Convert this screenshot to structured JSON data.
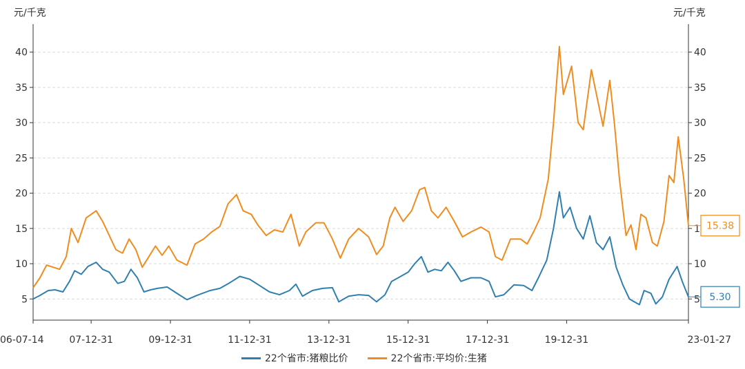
{
  "chart_data": {
    "type": "line",
    "y_unit_left": "元/千克",
    "y_unit_right": "元/千克",
    "ylim": [
      2,
      43
    ],
    "yticks": [
      5,
      10,
      15,
      20,
      25,
      30,
      35,
      40
    ],
    "x_tick_labels": [
      "06-07-14",
      "07-12-31",
      "09-12-31",
      "11-12-31",
      "13-12-31",
      "15-12-31",
      "17-12-31",
      "19-12-31",
      "23-01-27"
    ],
    "x_tick_dates": [
      "2006-07-14",
      "2007-12-31",
      "2009-12-31",
      "2011-12-31",
      "2013-12-31",
      "2015-12-31",
      "2017-12-31",
      "2019-12-31",
      "2023-01-27"
    ],
    "x_range": [
      "2006-07-14",
      "2023-01-27"
    ],
    "grid": "horizontal-dashed",
    "legend_position": "bottom",
    "series": [
      {
        "name": "22个省市:猪粮比价",
        "color": "#2E7FAF",
        "axis": "left",
        "last_value": "5.30",
        "points": [
          [
            "2006-07-14",
            5.0
          ],
          [
            "2006-09-15",
            5.5
          ],
          [
            "2006-12-01",
            6.2
          ],
          [
            "2007-02-01",
            6.3
          ],
          [
            "2007-04-15",
            6.0
          ],
          [
            "2007-06-15",
            7.5
          ],
          [
            "2007-08-01",
            9.0
          ],
          [
            "2007-10-01",
            8.5
          ],
          [
            "2007-12-01",
            9.6
          ],
          [
            "2008-02-15",
            10.2
          ],
          [
            "2008-04-15",
            9.2
          ],
          [
            "2008-06-15",
            8.8
          ],
          [
            "2008-09-01",
            7.2
          ],
          [
            "2008-11-01",
            7.5
          ],
          [
            "2009-01-01",
            9.2
          ],
          [
            "2009-03-01",
            8.0
          ],
          [
            "2009-05-01",
            6.0
          ],
          [
            "2009-07-01",
            6.3
          ],
          [
            "2009-09-01",
            6.5
          ],
          [
            "2009-12-01",
            6.7
          ],
          [
            "2010-03-01",
            5.8
          ],
          [
            "2010-06-01",
            4.9
          ],
          [
            "2010-09-01",
            5.5
          ],
          [
            "2011-01-01",
            6.2
          ],
          [
            "2011-04-01",
            6.5
          ],
          [
            "2011-07-01",
            7.3
          ],
          [
            "2011-10-01",
            8.2
          ],
          [
            "2012-01-01",
            7.8
          ],
          [
            "2012-04-01",
            6.9
          ],
          [
            "2012-07-01",
            6.0
          ],
          [
            "2012-10-01",
            5.6
          ],
          [
            "2013-01-01",
            6.2
          ],
          [
            "2013-03-01",
            7.1
          ],
          [
            "2013-05-01",
            5.4
          ],
          [
            "2013-08-01",
            6.2
          ],
          [
            "2013-11-01",
            6.5
          ],
          [
            "2014-02-01",
            6.6
          ],
          [
            "2014-04-01",
            4.6
          ],
          [
            "2014-07-01",
            5.4
          ],
          [
            "2014-10-01",
            5.6
          ],
          [
            "2015-01-01",
            5.5
          ],
          [
            "2015-03-15",
            4.6
          ],
          [
            "2015-06-01",
            5.6
          ],
          [
            "2015-08-01",
            7.5
          ],
          [
            "2015-10-01",
            8.0
          ],
          [
            "2016-01-01",
            8.8
          ],
          [
            "2016-03-01",
            10.0
          ],
          [
            "2016-05-01",
            11.0
          ],
          [
            "2016-07-01",
            8.8
          ],
          [
            "2016-09-01",
            9.2
          ],
          [
            "2016-11-01",
            9.0
          ],
          [
            "2017-01-01",
            10.2
          ],
          [
            "2017-03-01",
            9.0
          ],
          [
            "2017-05-01",
            7.5
          ],
          [
            "2017-08-01",
            8.0
          ],
          [
            "2017-11-01",
            8.0
          ],
          [
            "2018-01-15",
            7.5
          ],
          [
            "2018-03-15",
            5.3
          ],
          [
            "2018-06-01",
            5.6
          ],
          [
            "2018-09-01",
            7.0
          ],
          [
            "2018-12-01",
            6.9
          ],
          [
            "2019-02-15",
            6.2
          ],
          [
            "2019-04-15",
            8.0
          ],
          [
            "2019-07-01",
            10.5
          ],
          [
            "2019-09-01",
            15.0
          ],
          [
            "2019-10-25",
            20.2
          ],
          [
            "2019-12-01",
            16.5
          ],
          [
            "2020-02-01",
            18.0
          ],
          [
            "2020-04-01",
            15.0
          ],
          [
            "2020-06-01",
            13.5
          ],
          [
            "2020-08-01",
            16.8
          ],
          [
            "2020-10-01",
            13.0
          ],
          [
            "2020-12-01",
            12.0
          ],
          [
            "2021-02-01",
            13.8
          ],
          [
            "2021-04-01",
            9.5
          ],
          [
            "2021-06-01",
            7.0
          ],
          [
            "2021-08-01",
            5.0
          ],
          [
            "2021-09-15",
            4.6
          ],
          [
            "2021-11-01",
            4.2
          ],
          [
            "2021-12-15",
            6.2
          ],
          [
            "2022-02-15",
            5.8
          ],
          [
            "2022-04-01",
            4.3
          ],
          [
            "2022-06-01",
            5.3
          ],
          [
            "2022-08-01",
            7.8
          ],
          [
            "2022-10-15",
            9.6
          ],
          [
            "2022-12-01",
            7.5
          ],
          [
            "2023-01-27",
            5.3
          ]
        ]
      },
      {
        "name": "22个省市:平均价:生猪",
        "color": "#F08C1E",
        "axis": "right",
        "last_value": "15.38",
        "points": [
          [
            "2006-07-14",
            6.6
          ],
          [
            "2006-09-15",
            8.0
          ],
          [
            "2006-11-15",
            9.8
          ],
          [
            "2007-01-15",
            9.5
          ],
          [
            "2007-03-15",
            9.2
          ],
          [
            "2007-05-15",
            11.0
          ],
          [
            "2007-07-01",
            15.0
          ],
          [
            "2007-09-01",
            13.0
          ],
          [
            "2007-11-15",
            16.5
          ],
          [
            "2008-02-15",
            17.5
          ],
          [
            "2008-04-15",
            16.0
          ],
          [
            "2008-06-15",
            14.0
          ],
          [
            "2008-08-15",
            12.0
          ],
          [
            "2008-10-15",
            11.5
          ],
          [
            "2008-12-15",
            13.5
          ],
          [
            "2009-02-15",
            12.0
          ],
          [
            "2009-04-15",
            9.5
          ],
          [
            "2009-06-15",
            11.0
          ],
          [
            "2009-08-15",
            12.5
          ],
          [
            "2009-10-15",
            11.2
          ],
          [
            "2009-12-15",
            12.5
          ],
          [
            "2010-03-01",
            10.5
          ],
          [
            "2010-06-01",
            9.8
          ],
          [
            "2010-08-15",
            12.8
          ],
          [
            "2010-11-01",
            13.5
          ],
          [
            "2011-01-15",
            14.5
          ],
          [
            "2011-04-01",
            15.3
          ],
          [
            "2011-06-15",
            18.5
          ],
          [
            "2011-09-01",
            19.8
          ],
          [
            "2011-11-01",
            17.5
          ],
          [
            "2012-01-15",
            17.0
          ],
          [
            "2012-03-15",
            15.5
          ],
          [
            "2012-06-01",
            14.0
          ],
          [
            "2012-08-15",
            14.8
          ],
          [
            "2012-11-01",
            14.5
          ],
          [
            "2013-01-15",
            17.0
          ],
          [
            "2013-04-01",
            12.5
          ],
          [
            "2013-06-01",
            14.5
          ],
          [
            "2013-09-01",
            15.8
          ],
          [
            "2013-11-15",
            15.8
          ],
          [
            "2014-02-01",
            13.5
          ],
          [
            "2014-04-15",
            10.8
          ],
          [
            "2014-07-01",
            13.5
          ],
          [
            "2014-10-01",
            15.0
          ],
          [
            "2015-01-01",
            13.8
          ],
          [
            "2015-03-15",
            11.3
          ],
          [
            "2015-05-15",
            12.5
          ],
          [
            "2015-07-15",
            16.5
          ],
          [
            "2015-09-01",
            18.0
          ],
          [
            "2015-11-15",
            16.0
          ],
          [
            "2016-02-01",
            17.5
          ],
          [
            "2016-04-15",
            20.5
          ],
          [
            "2016-06-01",
            20.8
          ],
          [
            "2016-08-01",
            17.5
          ],
          [
            "2016-10-01",
            16.5
          ],
          [
            "2016-12-15",
            18.0
          ],
          [
            "2017-03-01",
            16.0
          ],
          [
            "2017-05-15",
            13.8
          ],
          [
            "2017-08-01",
            14.5
          ],
          [
            "2017-11-01",
            15.2
          ],
          [
            "2018-01-15",
            14.5
          ],
          [
            "2018-03-15",
            11.0
          ],
          [
            "2018-05-15",
            10.5
          ],
          [
            "2018-08-01",
            13.5
          ],
          [
            "2018-11-01",
            13.5
          ],
          [
            "2019-01-01",
            12.8
          ],
          [
            "2019-03-01",
            14.5
          ],
          [
            "2019-05-01",
            16.5
          ],
          [
            "2019-07-15",
            22.0
          ],
          [
            "2019-09-01",
            30.0
          ],
          [
            "2019-10-25",
            40.8
          ],
          [
            "2019-12-01",
            34.0
          ],
          [
            "2020-02-15",
            38.0
          ],
          [
            "2020-04-15",
            30.0
          ],
          [
            "2020-06-01",
            29.0
          ],
          [
            "2020-08-15",
            37.5
          ],
          [
            "2020-10-15",
            33.0
          ],
          [
            "2020-12-01",
            29.5
          ],
          [
            "2021-02-01",
            36.0
          ],
          [
            "2021-03-15",
            30.0
          ],
          [
            "2021-05-01",
            22.0
          ],
          [
            "2021-07-01",
            14.0
          ],
          [
            "2021-08-15",
            15.5
          ],
          [
            "2021-10-01",
            12.0
          ],
          [
            "2021-11-15",
            17.0
          ],
          [
            "2022-01-01",
            16.5
          ],
          [
            "2022-03-01",
            13.0
          ],
          [
            "2022-04-15",
            12.5
          ],
          [
            "2022-06-15",
            16.0
          ],
          [
            "2022-08-01",
            22.5
          ],
          [
            "2022-09-15",
            21.5
          ],
          [
            "2022-10-25",
            28.0
          ],
          [
            "2022-12-15",
            22.0
          ],
          [
            "2023-01-27",
            15.4
          ]
        ]
      }
    ]
  }
}
